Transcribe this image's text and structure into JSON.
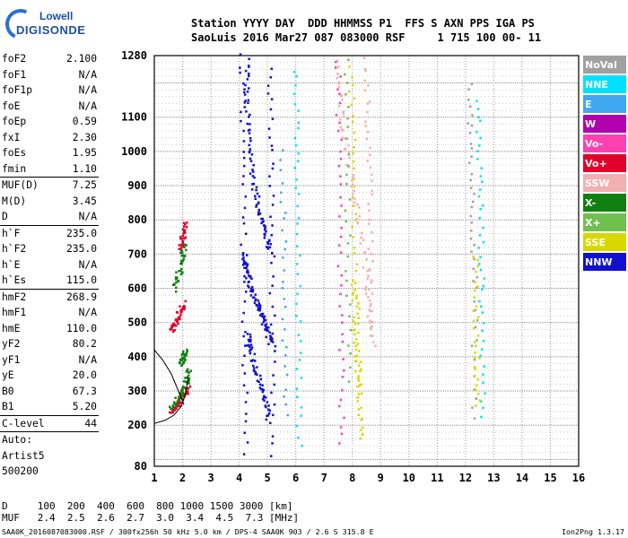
{
  "logo": {
    "line1": "Lowell",
    "line2": "DIGISONDE"
  },
  "header": {
    "row1": "Station YYYY DAY  DDD HHMMSS P1  FFS S AXN PPS IGA PS",
    "row2": "SaoLuis 2016 Mar27 087 083000 RSF     1 715 100 00- 11"
  },
  "params": {
    "group1": [
      {
        "name": "foF2",
        "value": "2.100"
      },
      {
        "name": "foF1",
        "value": "N/A"
      },
      {
        "name": "foF1p",
        "value": "N/A"
      },
      {
        "name": "foE",
        "value": "N/A"
      },
      {
        "name": "foEp",
        "value": "0.59"
      },
      {
        "name": "fxI",
        "value": "2.30"
      },
      {
        "name": "foEs",
        "value": "1.95"
      },
      {
        "name": "fmin",
        "value": "1.10"
      }
    ],
    "group2": [
      {
        "name": "MUF(D)",
        "value": "7.25"
      },
      {
        "name": "M(D)",
        "value": "3.45"
      },
      {
        "name": "D",
        "value": "N/A"
      }
    ],
    "group3": [
      {
        "name": "h`F",
        "value": "235.0"
      },
      {
        "name": "h`F2",
        "value": "235.0"
      },
      {
        "name": "h`E",
        "value": "N/A"
      },
      {
        "name": "h`Es",
        "value": "115.0"
      }
    ],
    "group4": [
      {
        "name": "hmF2",
        "value": "268.9"
      },
      {
        "name": "hmF1",
        "value": "N/A"
      },
      {
        "name": "hmE",
        "value": "110.0"
      },
      {
        "name": "yF2",
        "value": "80.2"
      },
      {
        "name": "yF1",
        "value": "N/A"
      },
      {
        "name": "yE",
        "value": "20.0"
      },
      {
        "name": "B0",
        "value": "67.3"
      },
      {
        "name": "B1",
        "value": "5.20"
      }
    ],
    "group5": [
      {
        "name": "C-level",
        "value": "44"
      }
    ],
    "auto": [
      "Auto:",
      "Artist5",
      "500200"
    ]
  },
  "legend": [
    {
      "label": "NoVal",
      "color": "#a0a0a0"
    },
    {
      "label": "NNE",
      "color": "#00e0ff"
    },
    {
      "label": "E",
      "color": "#40a8f0"
    },
    {
      "label": "W",
      "color": "#b000b0"
    },
    {
      "label": "Vo-",
      "color": "#ff40b0"
    },
    {
      "label": "Vo+",
      "color": "#e0002a"
    },
    {
      "label": "SSW",
      "color": "#f4b0b0"
    },
    {
      "label": "X-",
      "color": "#108010"
    },
    {
      "label": "X+",
      "color": "#70c050"
    },
    {
      "label": "SSE",
      "color": "#d8d800"
    },
    {
      "label": "NNW",
      "color": "#1010d0"
    }
  ],
  "table": {
    "row1": "D     100  200  400  600  800 1000 1500 3000 [km]",
    "row2": "MUF   2.4  2.5  2.6  2.7  3.0  3.4  4.5  7.3 [MHz]"
  },
  "footer": "SAA0K_2016087083000.RSF / 300fx256h 50 kHz 5.0 km / DPS-4 SAA0K 903 / 2.6 S 315.8 E",
  "version": "Ion2Png 1.3.17",
  "chart_data": {
    "type": "scatter",
    "xlim": [
      1,
      16
    ],
    "ylim": [
      80,
      1280
    ],
    "x_ticks": [
      1,
      2,
      3,
      4,
      5,
      6,
      7,
      8,
      9,
      10,
      11,
      12,
      13,
      14,
      15,
      16
    ],
    "y_ticks": [
      80,
      200,
      300,
      400,
      500,
      600,
      700,
      800,
      900,
      1000,
      1100,
      1280
    ],
    "grid": true,
    "legend_position": "right",
    "traces": [
      {
        "color": "#1010d0",
        "x": [
          4.28,
          4.2,
          4.35,
          4.5,
          4.72,
          4.9,
          5.1
        ],
        "y": [
          1270,
          1150,
          1010,
          900,
          820,
          760,
          700
        ]
      },
      {
        "color": "#1010d0",
        "x": [
          4.15,
          4.22,
          4.35,
          4.6,
          4.8,
          4.95,
          5.1
        ],
        "y": [
          700,
          660,
          610,
          560,
          520,
          480,
          440
        ]
      },
      {
        "color": "#1010d0",
        "x": [
          4.25,
          4.4,
          4.6,
          4.85,
          5.0
        ],
        "y": [
          470,
          420,
          350,
          290,
          220
        ]
      },
      {
        "color": "#1010d0",
        "x": [
          4.05,
          4.1,
          4.15,
          4.2
        ],
        "y": [
          1280,
          900,
          500,
          90
        ]
      },
      {
        "color": "#1010d0",
        "x": [
          5.05,
          5.1,
          5.15,
          5.1
        ],
        "y": [
          1250,
          900,
          500,
          90
        ]
      },
      {
        "color": "#e0002a",
        "x": [
          1.55,
          1.7,
          1.85,
          2.0
        ],
        "y": [
          480,
          500,
          530,
          560
        ]
      },
      {
        "color": "#e0002a",
        "x": [
          1.6,
          1.8,
          2.0,
          2.2
        ],
        "y": [
          240,
          260,
          290,
          310
        ]
      },
      {
        "color": "#108010",
        "x": [
          1.6,
          1.9,
          2.1,
          2.2
        ],
        "y": [
          250,
          290,
          330,
          370
        ]
      },
      {
        "color": "#108010",
        "x": [
          1.7,
          1.85,
          1.95,
          2.05
        ],
        "y": [
          600,
          650,
          700,
          740
        ]
      },
      {
        "color": "#e0002a",
        "x": [
          1.9,
          2.0,
          2.05
        ],
        "y": [
          720,
          760,
          800
        ]
      },
      {
        "color": "#108010",
        "x": [
          1.9,
          2.0,
          2.1
        ],
        "y": [
          380,
          400,
          420
        ]
      },
      {
        "color": "#00e0ff",
        "x": [
          5.95,
          6.0,
          6.05,
          6.1
        ],
        "y": [
          1240,
          900,
          500,
          120
        ]
      },
      {
        "color": "#40a8f0",
        "x": [
          5.5,
          5.55,
          5.6
        ],
        "y": [
          1000,
          600,
          200
        ]
      },
      {
        "color": "#f4b0b0",
        "x": [
          7.4,
          7.6,
          7.9,
          8.2,
          8.5,
          8.7
        ],
        "y": [
          1270,
          1100,
          950,
          800,
          600,
          420
        ]
      },
      {
        "color": "#ff40b0",
        "x": [
          7.45,
          7.5,
          7.55,
          7.6
        ],
        "y": [
          1270,
          900,
          500,
          120
        ]
      },
      {
        "color": "#d8d800",
        "x": [
          7.9,
          8.0,
          8.1,
          8.2
        ],
        "y": [
          1270,
          950,
          600,
          300
        ]
      },
      {
        "color": "#d8d800",
        "x": [
          8.0,
          8.1,
          8.2,
          8.3
        ],
        "y": [
          620,
          450,
          300,
          150
        ]
      },
      {
        "color": "#70c050",
        "x": [
          7.75,
          7.8,
          7.85
        ],
        "y": [
          1270,
          800,
          300
        ]
      },
      {
        "color": "#f4b0b0",
        "x": [
          8.45,
          8.55,
          8.6,
          8.65
        ],
        "y": [
          1270,
          1000,
          700,
          460
        ]
      },
      {
        "color": "#a0a0a0",
        "x": [
          12.1,
          12.2,
          12.3,
          12.25
        ],
        "y": [
          1200,
          900,
          600,
          200
        ]
      },
      {
        "color": "#00e0ff",
        "x": [
          12.4,
          12.5,
          12.55,
          12.6
        ],
        "y": [
          1150,
          850,
          550,
          200
        ]
      },
      {
        "color": "#d8d800",
        "x": [
          12.3,
          12.35,
          12.4
        ],
        "y": [
          700,
          450,
          250
        ]
      }
    ],
    "curve": {
      "color": "#000000",
      "x": [
        1.0,
        1.4,
        1.7,
        1.95,
        2.1,
        2.2
      ],
      "y": [
        205,
        215,
        230,
        255,
        290,
        340
      ]
    },
    "curve2": {
      "color": "#000000",
      "x": [
        1.0,
        1.3,
        1.6,
        1.85,
        2.05
      ],
      "y": [
        420,
        390,
        350,
        300,
        260
      ]
    }
  }
}
